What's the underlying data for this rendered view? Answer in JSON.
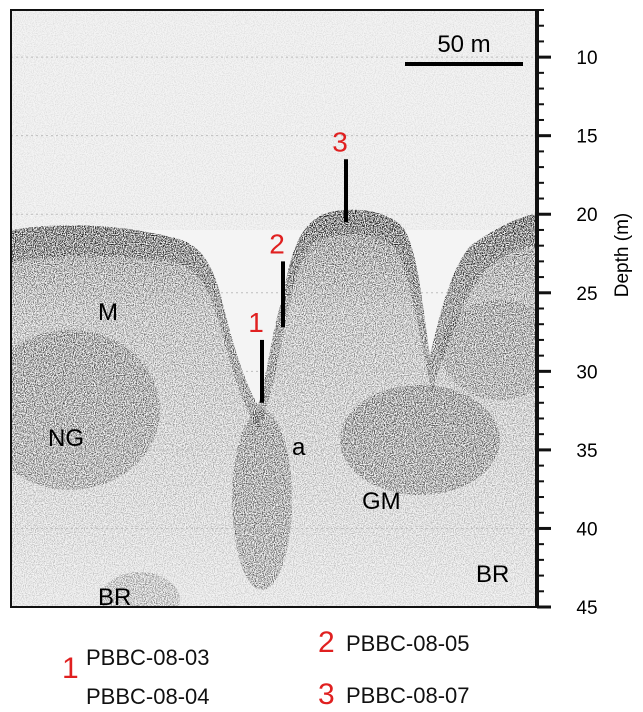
{
  "figure": {
    "scale_bar_label": "50 m",
    "axis": {
      "label": "Depth (m)",
      "min": 7,
      "max": 45,
      "ticks": [
        10,
        15,
        20,
        25,
        30,
        35,
        40,
        45
      ]
    },
    "region_labels": {
      "M": "M",
      "NG": "NG",
      "a": "a",
      "GM": "GM",
      "BR_left": "BR",
      "BR_right": "BR"
    },
    "cores": [
      {
        "id": "1",
        "top_depth_m": 28.0,
        "bottom_depth_m": 32.0
      },
      {
        "id": "2",
        "top_depth_m": 23.0,
        "bottom_depth_m": 27.2
      },
      {
        "id": "3",
        "top_depth_m": 16.5,
        "bottom_depth_m": 20.5
      }
    ]
  },
  "legend": {
    "group1_number": "1",
    "group1_line1": "PBBC-08-03",
    "group1_line2": "PBBC-08-04",
    "group2_number": "2",
    "group2_label": "PBBC-08-05",
    "group3_number": "3",
    "group3_label": "PBBC-08-07"
  },
  "colors": {
    "core_number": "#e02020",
    "echo_dark": "#111111",
    "grid": "#bdbdbd"
  }
}
